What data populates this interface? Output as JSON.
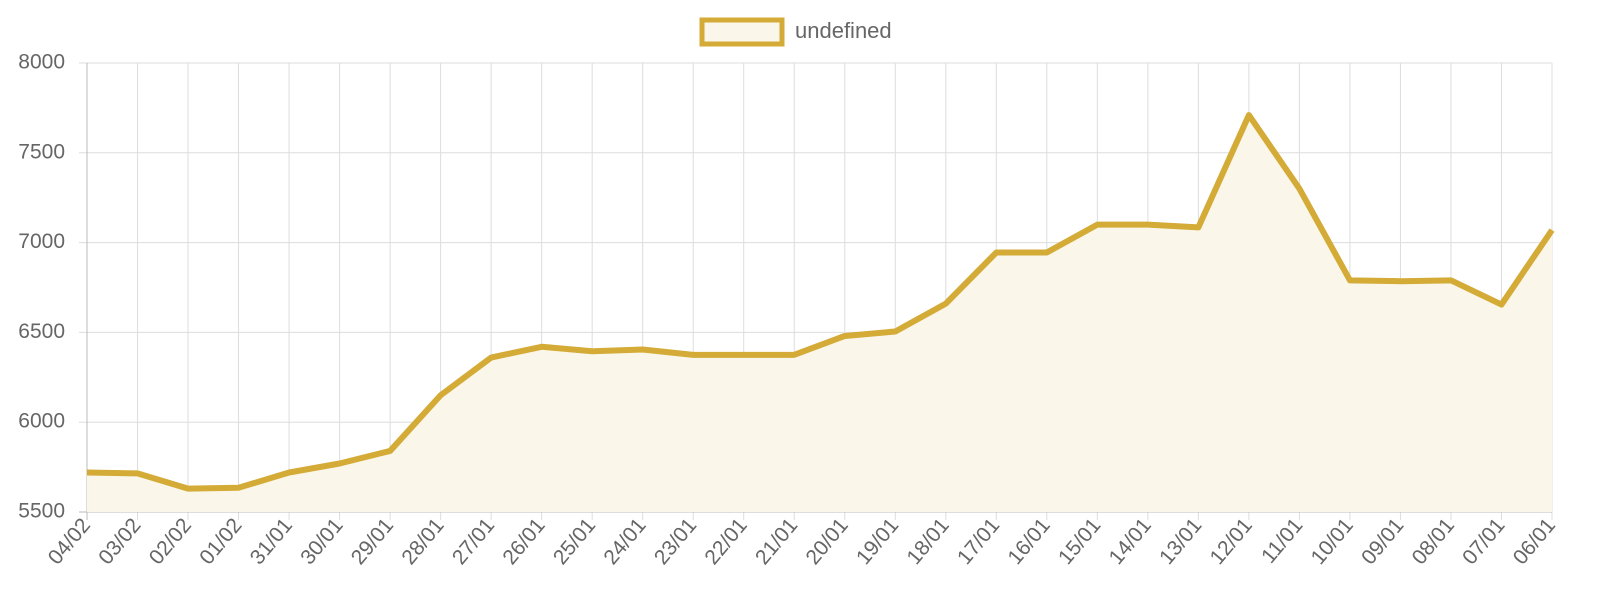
{
  "chart_data": {
    "type": "line",
    "categories": [
      "04/02",
      "03/02",
      "02/02",
      "01/02",
      "31/01",
      "30/01",
      "29/01",
      "28/01",
      "27/01",
      "26/01",
      "25/01",
      "24/01",
      "23/01",
      "22/01",
      "21/01",
      "20/01",
      "19/01",
      "18/01",
      "17/01",
      "16/01",
      "15/01",
      "14/01",
      "13/01",
      "12/01",
      "11/01",
      "10/01",
      "09/01",
      "08/01",
      "07/01",
      "06/01"
    ],
    "series": [
      {
        "name": "undefined",
        "color": "#d4ab36",
        "fill_color": "#faf7ea",
        "values": [
          5720,
          5715,
          5630,
          5635,
          5720,
          5770,
          5840,
          6150,
          6360,
          6420,
          6395,
          6405,
          6375,
          6375,
          6375,
          6480,
          6505,
          6660,
          6945,
          6945,
          7100,
          7100,
          7085,
          7710,
          7300,
          6790,
          6785,
          6790,
          6655,
          7070
        ]
      }
    ],
    "ylim": [
      5500,
      8000
    ],
    "yticks": [
      5500,
      6000,
      6500,
      7000,
      7500,
      8000
    ],
    "grid": true,
    "legend": "top"
  }
}
